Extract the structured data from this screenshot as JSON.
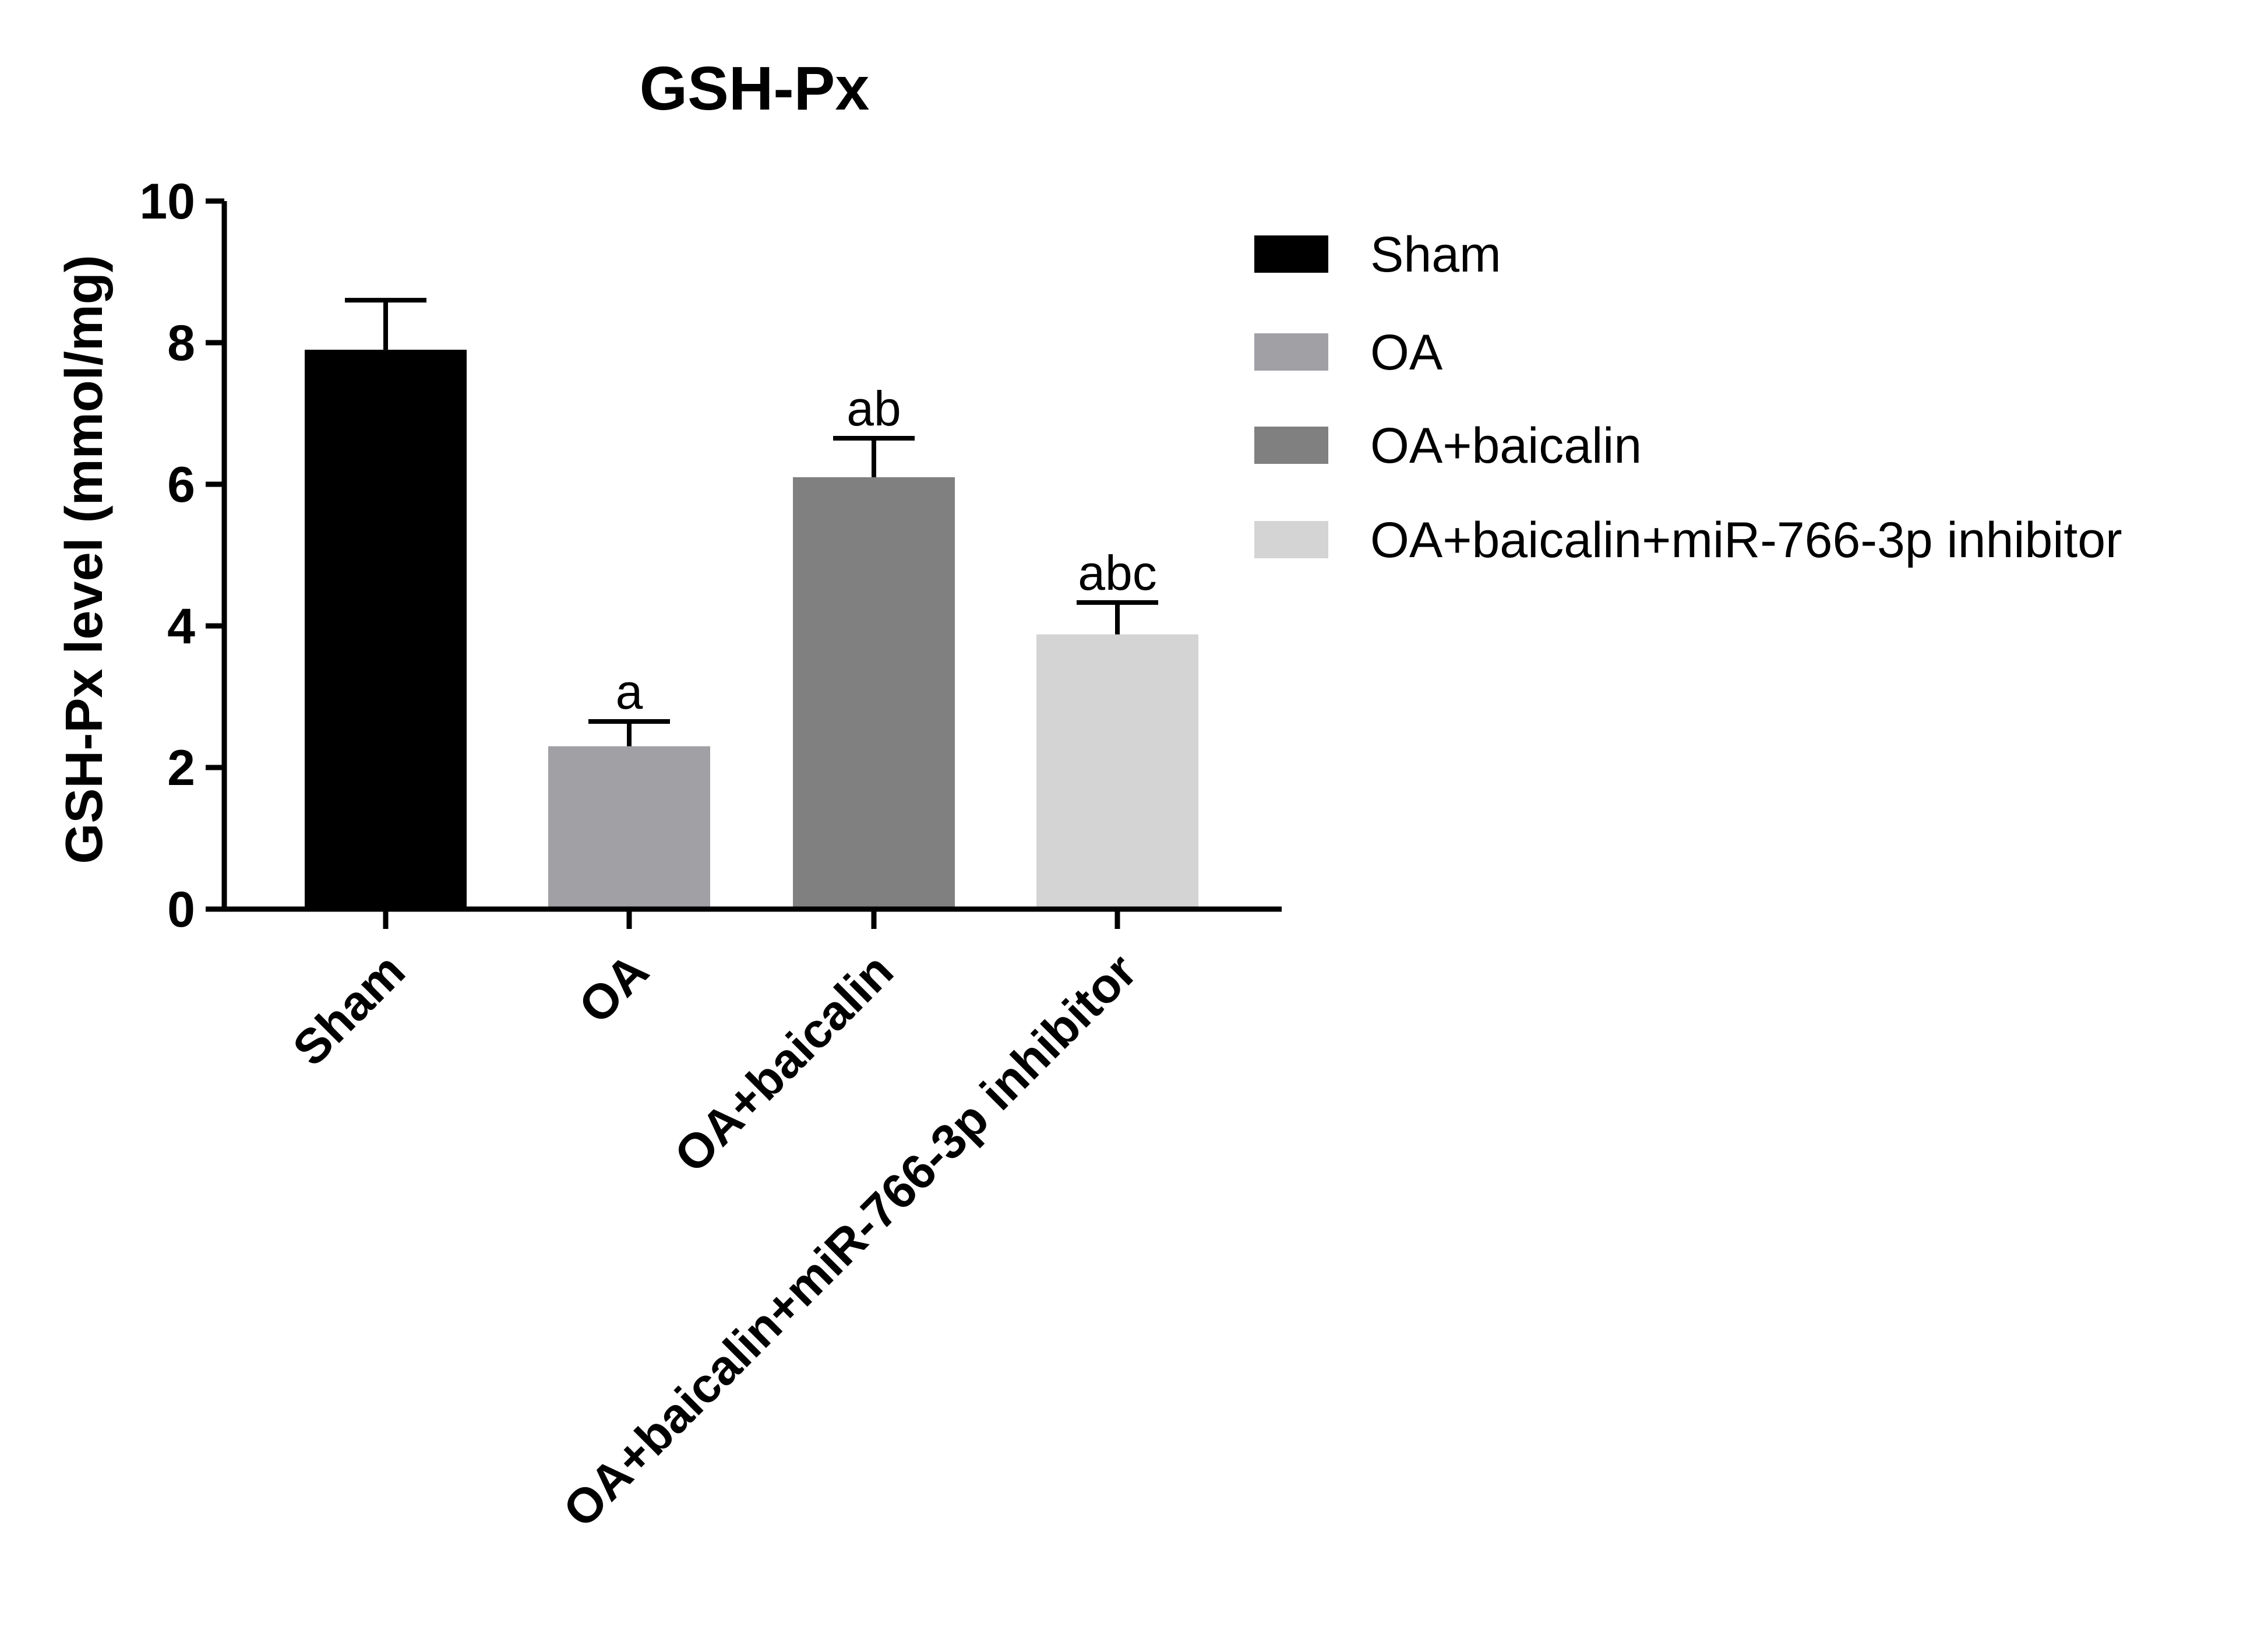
{
  "chart_data": {
    "type": "bar",
    "title": "GSH-Px",
    "ylabel": "GSH-Px level (mmol/mg)",
    "xlabel": "",
    "ylim": [
      0,
      10
    ],
    "yticks": [
      "0",
      "2",
      "4",
      "6",
      "8",
      "10"
    ],
    "categories": [
      "Sham",
      "OA",
      "OA+baicalin",
      "OA+baicalin+miR-766-3p inhibitor"
    ],
    "values": [
      7.9,
      2.3,
      6.1,
      3.88
    ],
    "errors": [
      0.7,
      0.35,
      0.55,
      0.45
    ],
    "significance": [
      "",
      "a",
      "ab",
      "abc"
    ],
    "colors": [
      "#000000",
      "#a0a0a5",
      "#808080",
      "#d4d4d4"
    ],
    "legend": {
      "position": "right",
      "entries": [
        "Sham",
        "OA",
        "OA+baicalin",
        "OA+baicalin+miR-766-3p inhibitor"
      ]
    },
    "grid": false
  }
}
